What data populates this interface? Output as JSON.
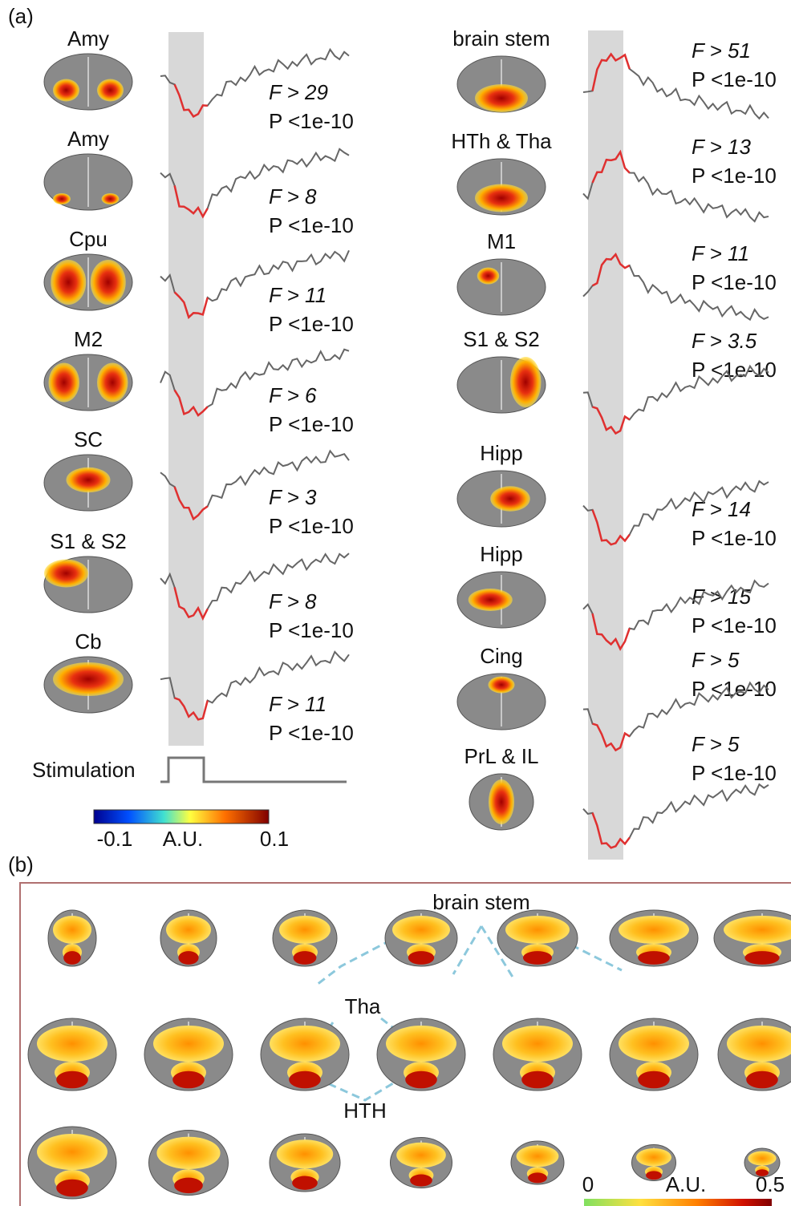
{
  "panel_a": {
    "label": "(a)",
    "left": [
      {
        "region": "Amy",
        "f": "F > 29",
        "p": "P <1e-10"
      },
      {
        "region": "Amy",
        "f": "F > 8",
        "p": "P <1e-10"
      },
      {
        "region": "Cpu",
        "f": "F > 11",
        "p": "P <1e-10"
      },
      {
        "region": "M2",
        "f": "F > 6",
        "p": "P <1e-10"
      },
      {
        "region": "SC",
        "f": "F > 3",
        "p": "P <1e-10"
      },
      {
        "region": "S1 & S2",
        "f": "F > 8",
        "p": "P <1e-10"
      },
      {
        "region": "Cb",
        "f": "F > 11",
        "p": "P <1e-10"
      }
    ],
    "right": [
      {
        "region": "brain stem",
        "f": "F > 51",
        "p": "P <1e-10"
      },
      {
        "region": "HTh & Tha",
        "f": "F > 13",
        "p": "P <1e-10"
      },
      {
        "region": "M1",
        "f": "F > 11",
        "p": "P <1e-10"
      },
      {
        "region": "S1 & S2",
        "f": "F > 3.5",
        "p": "P <1e-10"
      },
      {
        "region": "Hipp",
        "f": "F > 14",
        "p": "P <1e-10"
      },
      {
        "region": "Hipp",
        "f": "F > 15",
        "p": "P <1e-10"
      },
      {
        "region": "Cing",
        "f": "F > 5",
        "p": "P <1e-10"
      },
      {
        "region": "PrL & IL",
        "f": "F > 5",
        "p": "P <1e-10"
      }
    ],
    "stimulation": "Stimulation",
    "colorbar": {
      "min": "-0.1",
      "unit": "A.U.",
      "max": "0.1"
    }
  },
  "panel_b": {
    "label": "(b)",
    "annotations": [
      "brain stem",
      "Tha",
      "HTH"
    ],
    "colorbar": {
      "min": "0",
      "unit": "A.U.",
      "max": "0.5"
    }
  }
}
